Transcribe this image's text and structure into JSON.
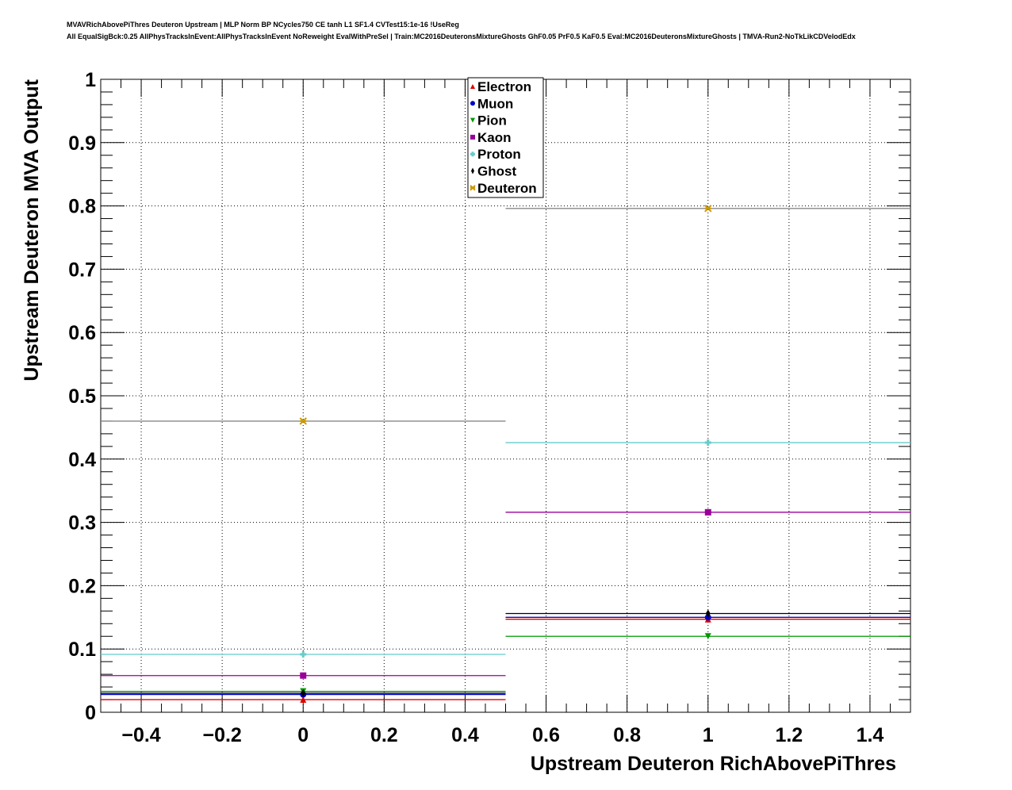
{
  "title_line1": "MVAVRichAbovePiThres Deuteron Upstream | MLP Norm BP NCycles750 CE tanh L1 SF1.4 CVTest15:1e-16 !UseReg",
  "title_line2": "All EqualSigBck:0.25 AllPhysTracksInEvent:AllPhysTracksInEvent NoReweight EvalWithPreSel | Train:MC2016DeuteronsMixtureGhosts GhF0.05 PrF0.5 KaF0.5 Eval:MC2016DeuteronsMixtureGhosts | TMVA-Run2-NoTkLikCDVelodEdx",
  "chart_data": {
    "type": "scatter",
    "xlabel": "Upstream Deuteron RichAbovePiThres",
    "ylabel": "Upstream Deuteron MVA Output",
    "xlim": [
      -0.5,
      1.5
    ],
    "ylim": [
      0,
      1
    ],
    "grid": true,
    "legend_placement": "top-center",
    "xticks": [
      "−0.4",
      "−0.2",
      "0",
      "0.2",
      "0.4",
      "0.6",
      "0.8",
      "1",
      "1.2",
      "1.4"
    ],
    "xtick_values": [
      -0.4,
      -0.2,
      0,
      0.2,
      0.4,
      0.6,
      0.8,
      1,
      1.2,
      1.4
    ],
    "yticks": [
      "0",
      "0.1",
      "0.2",
      "0.3",
      "0.4",
      "0.5",
      "0.6",
      "0.7",
      "0.8",
      "0.9",
      "1"
    ],
    "ytick_values": [
      0,
      0.1,
      0.2,
      0.3,
      0.4,
      0.5,
      0.6,
      0.7,
      0.8,
      0.9,
      1
    ],
    "x": [
      0,
      1
    ],
    "bins": [
      [
        -0.5,
        0.5
      ],
      [
        0.5,
        1.5
      ]
    ],
    "series": [
      {
        "name": "Electron",
        "color": "#dd0000",
        "marker": "triangle-up",
        "values": [
          0.02,
          0.147
        ]
      },
      {
        "name": "Muon",
        "color": "#0000cc",
        "marker": "circle",
        "values": [
          0.028,
          0.15
        ]
      },
      {
        "name": "Pion",
        "color": "#009900",
        "marker": "triangle-down",
        "values": [
          0.033,
          0.12
        ]
      },
      {
        "name": "Kaon",
        "color": "#990099",
        "marker": "square",
        "values": [
          0.058,
          0.316
        ]
      },
      {
        "name": "Proton",
        "color": "#66cccc",
        "marker": "cross",
        "values": [
          0.0915,
          0.426
        ]
      },
      {
        "name": "Ghost",
        "color": "#000000",
        "marker": "diamond",
        "values": [
          0.03,
          0.156
        ]
      },
      {
        "name": "Deuteron",
        "color": "#cc9900",
        "marker": "star",
        "values": [
          0.46,
          0.796
        ]
      }
    ]
  }
}
